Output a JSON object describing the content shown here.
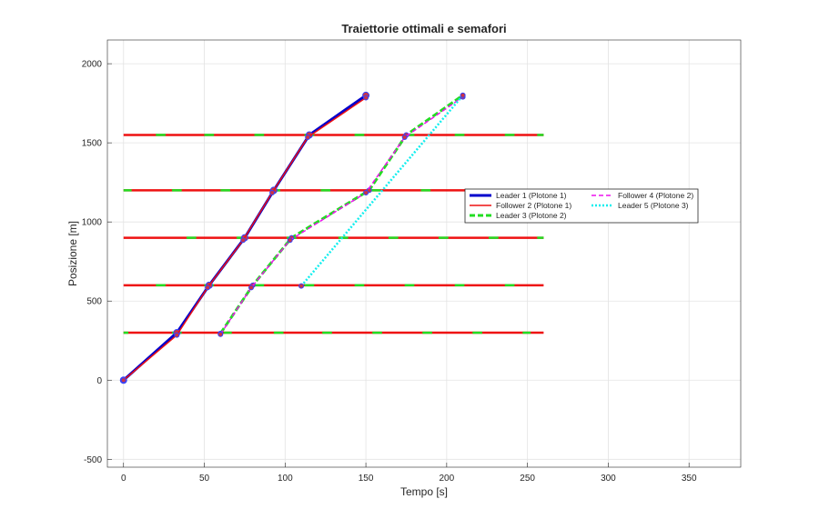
{
  "chart_data": {
    "type": "line",
    "title": "Traiettorie ottimali e semafori",
    "xlabel": "Tempo [s]",
    "ylabel": "Posizione [m]",
    "xlim": [
      -10,
      382
    ],
    "ylim": [
      -550,
      2150
    ],
    "xticks": [
      0,
      50,
      100,
      150,
      200,
      250,
      300,
      350
    ],
    "yticks": [
      -500,
      0,
      500,
      1000,
      1500,
      2000
    ],
    "grid": true,
    "legend_position": "right, mid-height",
    "colors": {
      "leader1": "#0000cc",
      "follower2": "#ee1111",
      "leader3": "#22dd22",
      "follower4": "#ee11ee",
      "leader5": "#11eeee",
      "red_light": "#ee1111",
      "green_light": "#22dd22",
      "marker_edge": "#3344ff",
      "marker_fill": "#cc3344"
    },
    "traffic_lights": [
      {
        "position": 300,
        "x_start": 0,
        "x_end": 260,
        "green_windows": [
          [
            0,
            3
          ],
          [
            30,
            36
          ],
          [
            62,
            67
          ],
          [
            93,
            99
          ],
          [
            123,
            129
          ],
          [
            154,
            160
          ],
          [
            185,
            191
          ],
          [
            216,
            222
          ],
          [
            247,
            252
          ]
        ]
      },
      {
        "position": 600,
        "x_start": 0,
        "x_end": 260,
        "green_windows": [
          [
            20,
            26
          ],
          [
            50,
            56
          ],
          [
            81,
            87
          ],
          [
            112,
            118
          ],
          [
            143,
            149
          ],
          [
            174,
            180
          ],
          [
            205,
            211
          ],
          [
            236,
            242
          ]
        ]
      },
      {
        "position": 900,
        "x_start": 0,
        "x_end": 260,
        "green_windows": [
          [
            39,
            45
          ],
          [
            70,
            76
          ],
          [
            101,
            107
          ],
          [
            133,
            139
          ],
          [
            164,
            170
          ],
          [
            195,
            201
          ],
          [
            226,
            232
          ],
          [
            256,
            260
          ]
        ]
      },
      {
        "position": 1200,
        "x_start": 0,
        "x_end": 260,
        "green_windows": [
          [
            0,
            5
          ],
          [
            30,
            36
          ],
          [
            60,
            66
          ],
          [
            91,
            97
          ],
          [
            122,
            128
          ],
          [
            153,
            159
          ],
          [
            184,
            190
          ],
          [
            215,
            221
          ],
          [
            246,
            252
          ]
        ]
      },
      {
        "position": 1550,
        "x_start": 0,
        "x_end": 260,
        "green_windows": [
          [
            20,
            26
          ],
          [
            50,
            56
          ],
          [
            81,
            87
          ],
          [
            112,
            118
          ],
          [
            143,
            149
          ],
          [
            174,
            180
          ],
          [
            205,
            211
          ],
          [
            236,
            242
          ],
          [
            256,
            260
          ]
        ]
      }
    ],
    "series": [
      {
        "name": "Leader 1 (Plotone 1)",
        "style": "solid-thick",
        "color_key": "leader1",
        "x": [
          0,
          33,
          53,
          75,
          93,
          115,
          150
        ],
        "y": [
          0,
          300,
          600,
          900,
          1200,
          1550,
          1800
        ]
      },
      {
        "name": "Follower 2 (Plotone 1)",
        "style": "solid",
        "color_key": "follower2",
        "x": [
          0,
          33,
          52,
          74,
          92,
          114,
          150
        ],
        "y": [
          0,
          285,
          585,
          885,
          1185,
          1535,
          1785
        ]
      },
      {
        "name": "Leader 3 (Plotone 2)",
        "style": "dashed-thick",
        "color_key": "leader3",
        "x": [
          60,
          80,
          104,
          152,
          175,
          210
        ],
        "y": [
          295,
          600,
          900,
          1200,
          1550,
          1800
        ]
      },
      {
        "name": "Follower 4 (Plotone 2)",
        "style": "dashed",
        "color_key": "follower4",
        "x": [
          60,
          79,
          103,
          150,
          174,
          210
        ],
        "y": [
          290,
          585,
          885,
          1185,
          1535,
          1790
        ]
      },
      {
        "name": "Leader 5 (Plotone 3)",
        "style": "dotted",
        "color_key": "leader5",
        "x": [
          110,
          210
        ],
        "y": [
          595,
          1800
        ]
      }
    ]
  }
}
